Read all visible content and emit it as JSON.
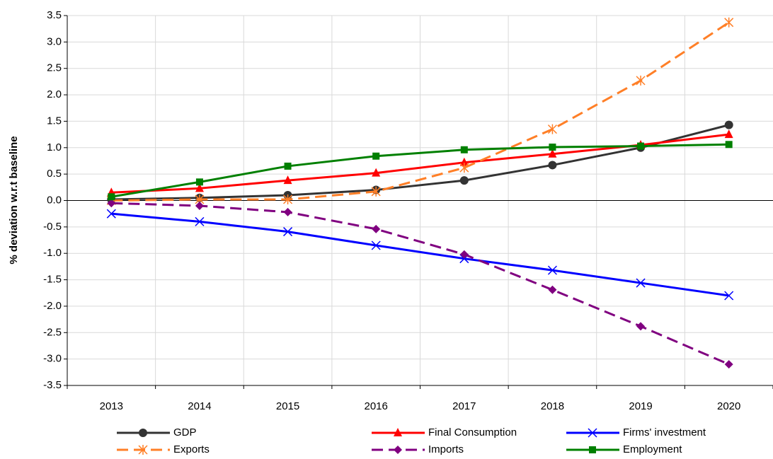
{
  "chart_data": {
    "type": "line",
    "y_label": "% deviation w.r.t baseline",
    "categories": [
      "2013",
      "2014",
      "2015",
      "2016",
      "2017",
      "2018",
      "2019",
      "2020"
    ],
    "ylim": [
      -3.5,
      3.5
    ],
    "yticks": [
      3.5,
      {
        "value": 3,
        "label": "3.0"
      },
      2.5,
      {
        "value": 2,
        "label": "2.0"
      },
      1.5,
      {
        "value": 1,
        "label": "1.0"
      },
      0.5,
      {
        "value": 0,
        "label": "0.0"
      },
      -0.5,
      {
        "value": -1,
        "label": "-1.0"
      },
      -1.5,
      {
        "value": -2,
        "label": "-2.0"
      },
      -2.5,
      {
        "value": -3,
        "label": "-3.0"
      },
      -3.5
    ],
    "grid": true,
    "series": [
      {
        "name": "GDP",
        "color": "#333333",
        "marker": "circle",
        "dashed": false,
        "values": [
          0.02,
          0.05,
          0.1,
          0.2,
          0.38,
          0.67,
          1.0,
          1.43
        ]
      },
      {
        "name": "Final Consumption",
        "color": "#ff0000",
        "marker": "triangle",
        "dashed": false,
        "values": [
          0.15,
          0.23,
          0.38,
          0.52,
          0.72,
          0.88,
          1.05,
          1.25
        ]
      },
      {
        "name": "Firms' investment",
        "color": "#0000ff",
        "marker": "x",
        "dashed": false,
        "values": [
          -0.25,
          -0.4,
          -0.59,
          -0.85,
          -1.1,
          -1.32,
          -1.56,
          -1.8
        ]
      },
      {
        "name": "Exports",
        "color": "#ff7f27",
        "marker": "asterisk",
        "dashed": true,
        "values": [
          0.0,
          0.02,
          0.02,
          0.17,
          0.62,
          1.35,
          2.27,
          3.37
        ]
      },
      {
        "name": "Imports",
        "color": "#800080",
        "marker": "diamond",
        "dashed": true,
        "values": [
          -0.05,
          -0.1,
          -0.22,
          -0.54,
          -1.02,
          -1.69,
          -2.38,
          -3.1
        ]
      },
      {
        "name": "Employment",
        "color": "#008000",
        "marker": "square",
        "dashed": false,
        "values": [
          0.07,
          0.35,
          0.65,
          0.84,
          0.96,
          1.01,
          1.03,
          1.06
        ]
      }
    ]
  }
}
